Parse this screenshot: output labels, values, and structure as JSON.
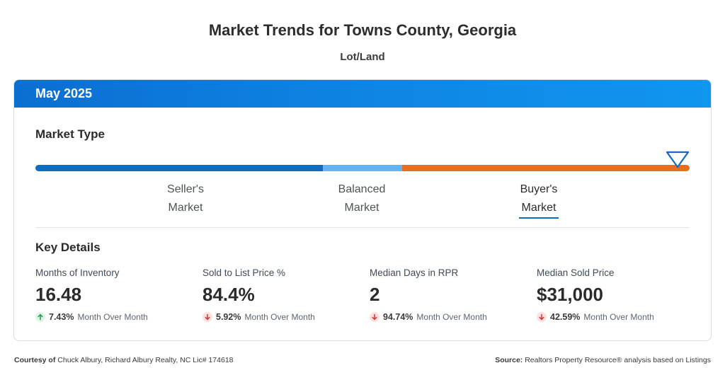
{
  "header": {
    "title": "Market Trends for Towns County, Georgia",
    "subtitle": "Lot/Land"
  },
  "card": {
    "period": "May 2025",
    "market_type": {
      "label": "Market Type",
      "seller_line1": "Seller's",
      "seller_line2": "Market",
      "balanced_line1": "Balanced",
      "balanced_line2": "Market",
      "buyer_line1": "Buyer's",
      "buyer_line2": "Market",
      "selected": "Buyer's Market",
      "colors": {
        "seller": "#0f6cbf",
        "balanced": "#62b4f5",
        "buyer": "#e56e1f"
      }
    },
    "key_details": {
      "label": "Key Details",
      "stats": [
        {
          "label": "Months of Inventory",
          "value": "16.48",
          "change": "7.43%",
          "direction": "up",
          "period": "Month Over Month"
        },
        {
          "label": "Sold to List Price %",
          "value": "84.4%",
          "change": "5.92%",
          "direction": "down",
          "period": "Month Over Month"
        },
        {
          "label": "Median Days in RPR",
          "value": "2",
          "change": "94.74%",
          "direction": "down",
          "period": "Month Over Month"
        },
        {
          "label": "Median Sold Price",
          "value": "$31,000",
          "change": "42.59%",
          "direction": "down",
          "period": "Month Over Month"
        }
      ]
    }
  },
  "footer": {
    "courtesy_label": "Courtesy of",
    "courtesy_text": "Chuck Albury, Richard Albury Realty, NC Lic# 174618",
    "source_label": "Source:",
    "source_text": "Realtors Property Resource® analysis based on Listings"
  }
}
